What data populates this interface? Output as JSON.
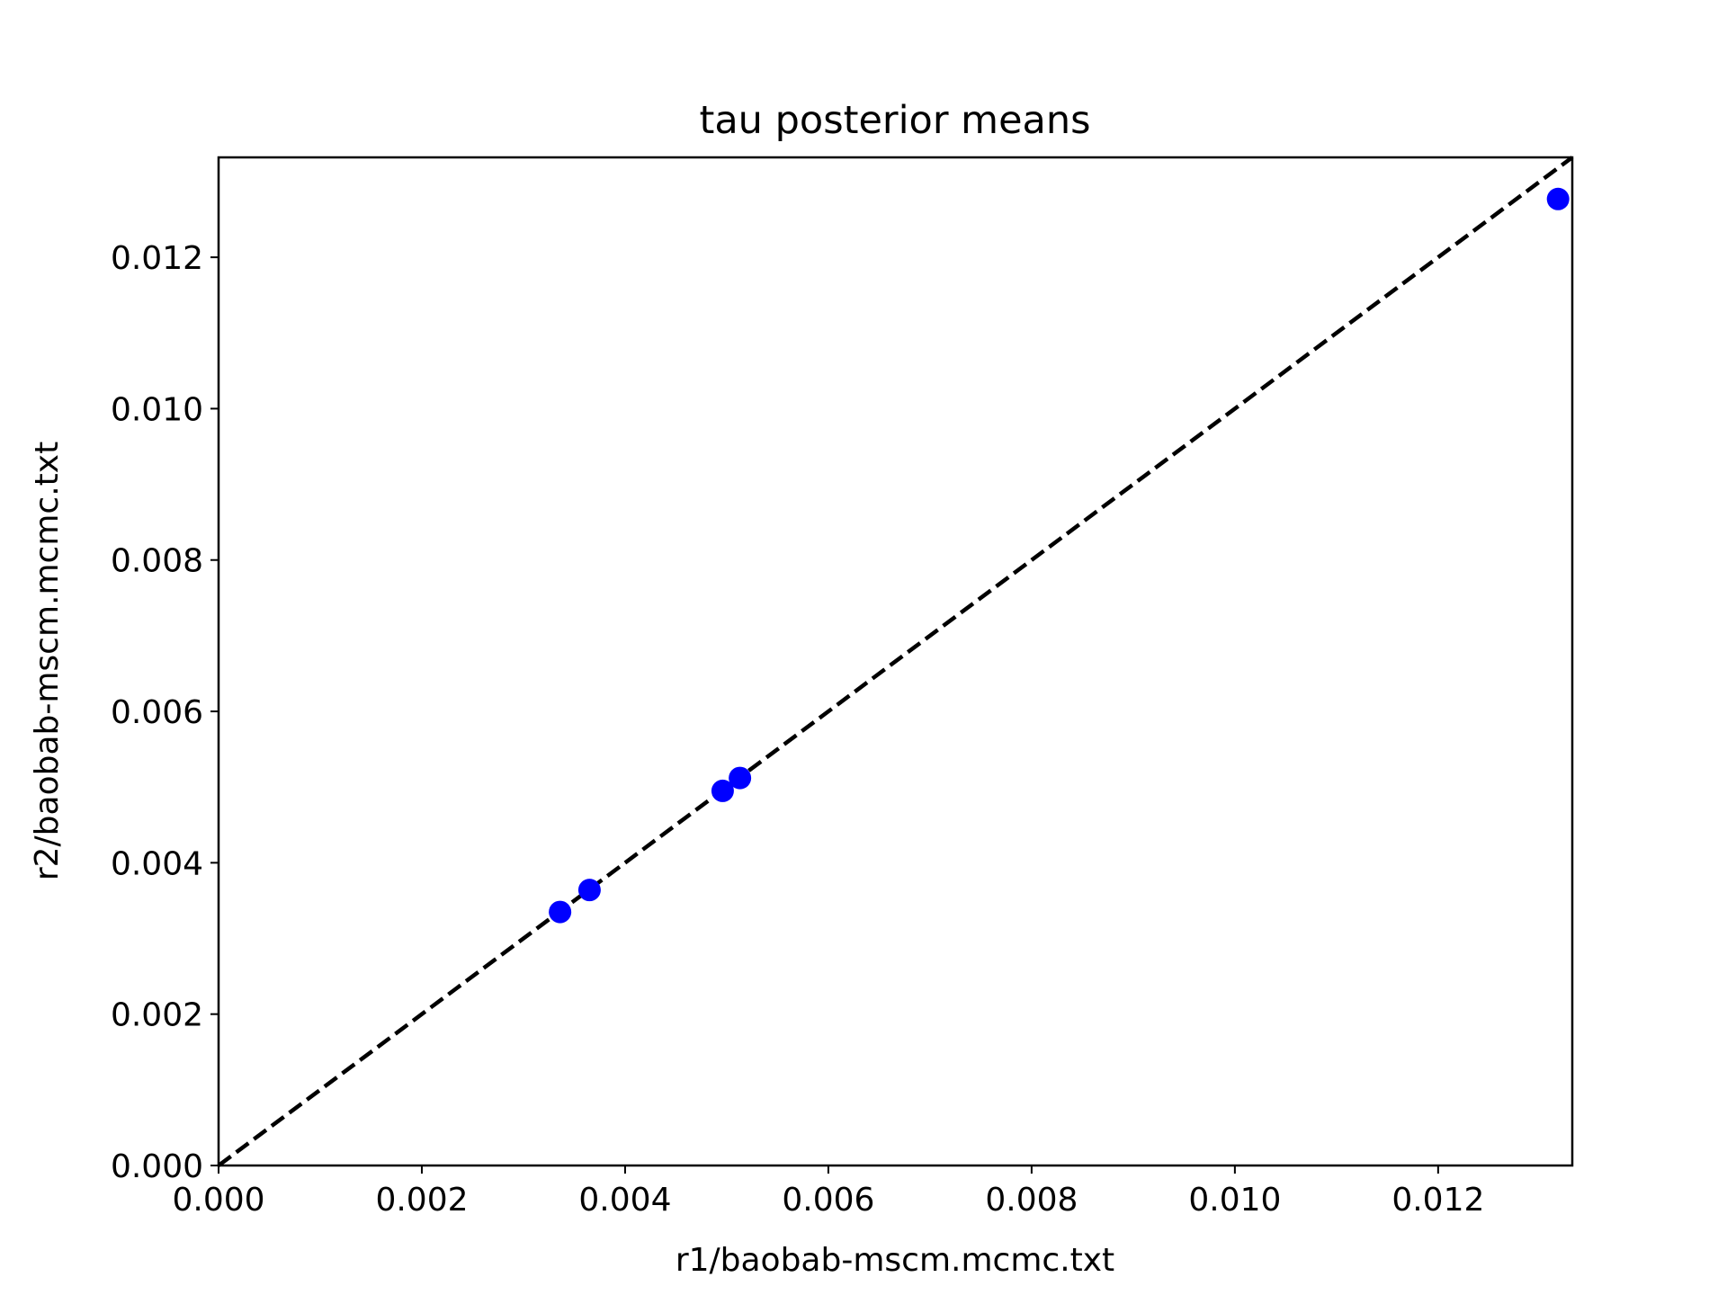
{
  "chart_data": {
    "type": "scatter",
    "title": "tau posterior means",
    "xlabel": "r1/baobab-mscm.mcmc.txt",
    "ylabel": "r2/baobab-mscm.mcmc.txt",
    "xlim": [
      0,
      0.01332
    ],
    "ylim": [
      0,
      0.01332
    ],
    "xticks": [
      "0.000",
      "0.002",
      "0.004",
      "0.006",
      "0.008",
      "0.010",
      "0.012"
    ],
    "yticks": [
      "0.000",
      "0.002",
      "0.004",
      "0.006",
      "0.008",
      "0.010",
      "0.012"
    ],
    "grid": false,
    "reference_line": {
      "style": "dashed",
      "color": "#000000",
      "from": [
        0,
        0
      ],
      "to": [
        0.01332,
        0.01332
      ]
    },
    "series": [
      {
        "color": "#0000ff",
        "points": [
          {
            "x": 0.00336,
            "y": 0.00335
          },
          {
            "x": 0.00365,
            "y": 0.00364
          },
          {
            "x": 0.00496,
            "y": 0.00495
          },
          {
            "x": 0.00513,
            "y": 0.00512
          },
          {
            "x": 0.01318,
            "y": 0.01277
          }
        ]
      }
    ]
  }
}
